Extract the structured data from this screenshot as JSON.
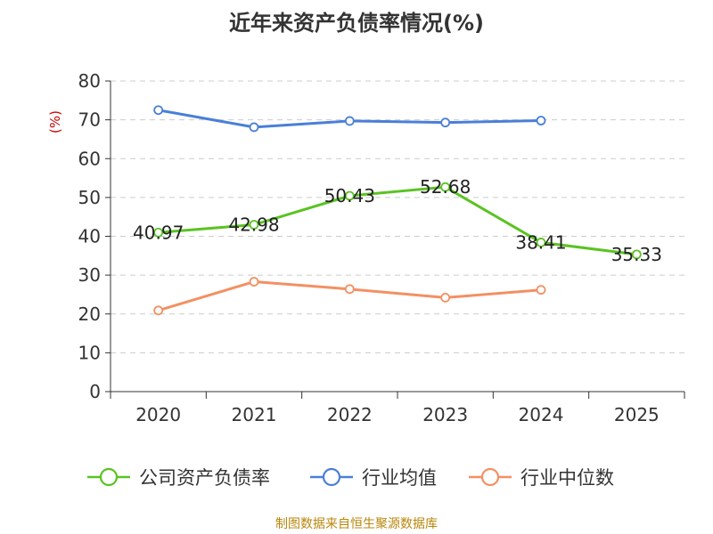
{
  "chart_data": {
    "type": "line",
    "title": "近年来资产负债率情况(%)",
    "ylabel": "(%)",
    "xlabel": "",
    "categories": [
      "2020",
      "2021",
      "2022",
      "2023",
      "2024",
      "2025"
    ],
    "ylim": [
      0,
      80
    ],
    "yticks": [
      0,
      10,
      20,
      30,
      40,
      50,
      60,
      70,
      80
    ],
    "grid": true,
    "legend_position": "bottom",
    "series": [
      {
        "name": "公司资产负债率",
        "color": "#5ac322",
        "values": [
          40.97,
          42.98,
          50.43,
          52.68,
          38.41,
          35.33
        ],
        "labels": [
          "40.97",
          "42.98",
          "50.43",
          "52.68",
          "38.41",
          "35.33"
        ]
      },
      {
        "name": "行业均值",
        "color": "#4a7fd8",
        "values": [
          72.5,
          68.1,
          69.7,
          69.3,
          69.8,
          null
        ]
      },
      {
        "name": "行业中位数",
        "color": "#f39063",
        "values": [
          20.9,
          28.3,
          26.4,
          24.2,
          26.2,
          null
        ]
      }
    ]
  },
  "footer": {
    "source": "制图数据来自恒生聚源数据库"
  }
}
